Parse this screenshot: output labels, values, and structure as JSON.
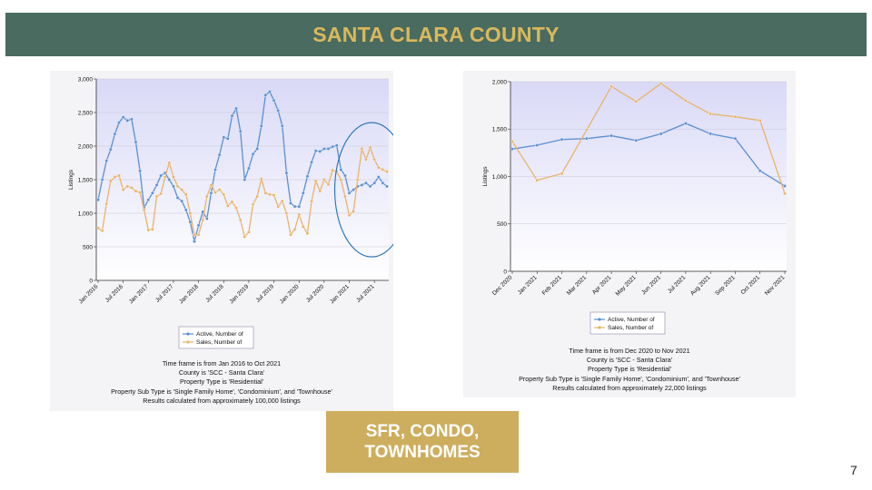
{
  "slide": {
    "title": "SANTA CLARA COUNTY",
    "badge_lines": [
      "SFR, CONDO,",
      "TOWNHOMES"
    ],
    "page_number": "7"
  },
  "colors": {
    "active": "#5b8fd1",
    "sales": "#e8b36a",
    "header_bg": "#4a6b5f",
    "header_text": "#d9b85c",
    "badge_bg": "#cdae5e",
    "highlight": "#1f6fb5"
  },
  "chart_data": [
    {
      "type": "line",
      "title": "",
      "ylabel": "Listings",
      "ylim": [
        0,
        3000
      ],
      "yticks": [
        0,
        500,
        1000,
        1500,
        2000,
        2500,
        3000
      ],
      "ytick_labels": [
        "0",
        "500",
        "1,000",
        "1,500",
        "2,000",
        "2,500",
        "3,000"
      ],
      "xlabels": [
        "Jan 2016",
        "Jul 2016",
        "Jan 2017",
        "Jul 2017",
        "Jan 2018",
        "Jul 2018",
        "Jan 2019",
        "Jul 2019",
        "Jan 2020",
        "Jul 2020",
        "Jan 2021",
        "Jul 2021"
      ],
      "xlabel_index": [
        0,
        6,
        12,
        18,
        24,
        30,
        36,
        42,
        48,
        54,
        60,
        66
      ],
      "n_points": 70,
      "legend": [
        "Active, Number of",
        "Sales, Number of"
      ],
      "legend_placement": "bottom",
      "highlight_ellipse": "around Jan 2021 - Oct 2021",
      "series": [
        {
          "name": "Active, Number of",
          "values": [
            1200,
            1500,
            1780,
            1950,
            2180,
            2350,
            2430,
            2380,
            2400,
            2060,
            1630,
            1080,
            1200,
            1300,
            1420,
            1560,
            1600,
            1500,
            1400,
            1230,
            1180,
            1050,
            870,
            580,
            820,
            1020,
            920,
            1300,
            1650,
            1870,
            2130,
            2110,
            2450,
            2560,
            2220,
            1500,
            1670,
            1880,
            1960,
            2300,
            2760,
            2810,
            2680,
            2530,
            2300,
            1600,
            1150,
            1100,
            1100,
            1300,
            1550,
            1760,
            1930,
            1920,
            1960,
            1960,
            1990,
            2010,
            1650,
            1560,
            1300,
            1350,
            1400,
            1420,
            1450,
            1400,
            1450,
            1540,
            1450,
            1400
          ]
        },
        {
          "name": "Sales, Number of",
          "values": [
            780,
            740,
            1140,
            1480,
            1540,
            1560,
            1350,
            1400,
            1380,
            1330,
            1310,
            1050,
            750,
            760,
            1250,
            1290,
            1540,
            1750,
            1540,
            1400,
            1350,
            1280,
            1000,
            680,
            680,
            900,
            1250,
            1420,
            1310,
            1350,
            1280,
            1110,
            1170,
            1080,
            900,
            650,
            720,
            1130,
            1250,
            1510,
            1300,
            1280,
            1270,
            1100,
            1180,
            1000,
            680,
            760,
            980,
            800,
            700,
            1180,
            1480,
            1330,
            1500,
            1430,
            1640,
            1620,
            1500,
            1250,
            970,
            1030,
            1500,
            1960,
            1800,
            1980,
            1800,
            1680,
            1650,
            1620
          ]
        }
      ]
    },
    {
      "type": "line",
      "title": "",
      "ylabel": "Listings",
      "ylim": [
        0,
        2000
      ],
      "yticks": [
        0,
        500,
        1000,
        1500,
        2000
      ],
      "ytick_labels": [
        "0",
        "500",
        "1,000",
        "1,500",
        "2,000"
      ],
      "categories": [
        "Dec 2020",
        "Jan 2021",
        "Feb 2021",
        "Mar 2021",
        "Apr 2021",
        "May 2021",
        "Jun 2021",
        "Jul 2021",
        "Aug 2021",
        "Sep 2021",
        "Oct 2021",
        "Nov 2021"
      ],
      "legend": [
        "Active, Number of",
        "Sales, Number of"
      ],
      "legend_placement": "bottom",
      "series": [
        {
          "name": "Active, Number of",
          "values": [
            1290,
            1330,
            1390,
            1400,
            1430,
            1380,
            1450,
            1560,
            1450,
            1400,
            1060,
            900
          ]
        },
        {
          "name": "Sales, Number of",
          "values": [
            1370,
            960,
            1030,
            1490,
            1950,
            1790,
            1980,
            1800,
            1660,
            1630,
            1590,
            820
          ]
        }
      ]
    }
  ],
  "captions": [
    {
      "lines": [
        "Time frame is from Jan 2016 to Oct 2021",
        "County is 'SCC - Santa Clara'",
        "Property Type is 'Residential'",
        "Property Sub Type is 'Single Family Home', 'Condominium', and 'Townhouse'",
        "Results calculated from approximately 100,000 listings"
      ]
    },
    {
      "lines": [
        "Time frame is from Dec 2020 to Nov 2021",
        "County is 'SCC - Santa Clara'",
        "Property Type is 'Residential'",
        "Property Sub Type is 'Single Family Home', 'Condominium', and 'Townhouse'",
        "Results calculated from approximately 22,000 listings"
      ]
    }
  ]
}
